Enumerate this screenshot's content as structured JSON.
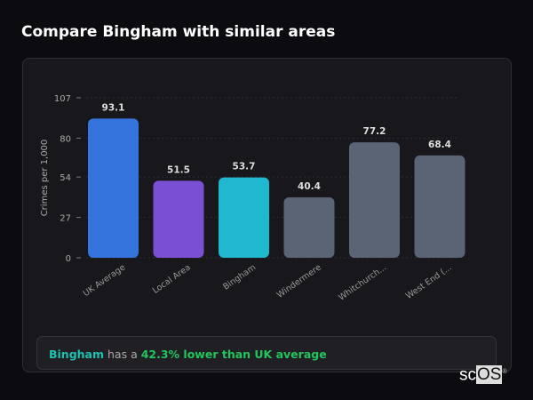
{
  "title": "Compare Bingham with similar areas",
  "summary": {
    "area": "Bingham",
    "middle": " has a ",
    "highlight": "42.3% lower than UK average"
  },
  "logo": {
    "text1": "sc",
    "text2": "OS",
    "mark": "®"
  },
  "chart_data": {
    "type": "bar",
    "title": "",
    "ylabel": "Crimes per 1,000",
    "xlabel": "",
    "ylim": [
      0,
      107
    ],
    "yticks": [
      0,
      27,
      54,
      80,
      107
    ],
    "grid": true,
    "categories": [
      "UK Average",
      "Local Area",
      "Bingham",
      "Windermere",
      "Whitchurch...",
      "West End (..."
    ],
    "values": [
      93.1,
      51.5,
      53.7,
      40.4,
      77.2,
      68.4
    ],
    "value_labels": [
      "93.1",
      "51.5",
      "53.7",
      "40.4",
      "77.2",
      "68.4"
    ],
    "colors": [
      "#3574dc",
      "#7b4fd4",
      "#1fb8cf",
      "#5a6475",
      "#5a6475",
      "#5a6475"
    ]
  }
}
